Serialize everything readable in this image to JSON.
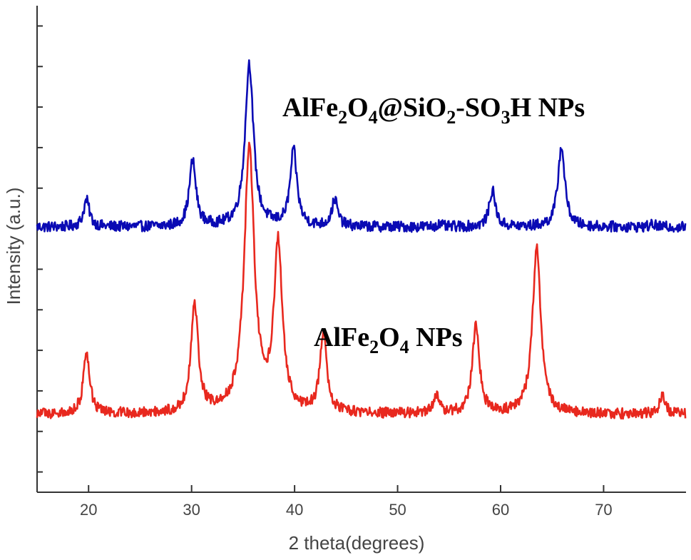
{
  "chart_data": {
    "type": "line",
    "title": "",
    "xlabel": "2 theta(degrees)",
    "ylabel": "Intensity (a.u.)",
    "xlim": [
      15,
      78
    ],
    "ylim": [
      0,
      10
    ],
    "x_ticks": [
      20,
      30,
      40,
      50,
      60,
      70
    ],
    "y_tick_count": 12,
    "grid": false,
    "colors": {
      "top": "#0a0ab4",
      "bottom": "#e8281e",
      "axis": "#333333"
    },
    "series": [
      {
        "name": "AlFe2O4@SiO2-SO3H NPs",
        "label_parts": [
          "AlFe",
          "2",
          "O",
          "4",
          "@SiO",
          "2",
          "-SO",
          "3",
          "H NPs"
        ],
        "color": "#0a0ab4",
        "baseline": 5.45,
        "peaks": [
          {
            "x": 19.8,
            "y": 6.0
          },
          {
            "x": 30.1,
            "y": 6.8
          },
          {
            "x": 35.6,
            "y": 8.8
          },
          {
            "x": 39.9,
            "y": 7.0
          },
          {
            "x": 43.9,
            "y": 6.0
          },
          {
            "x": 54.0,
            "y": 5.5
          },
          {
            "x": 59.2,
            "y": 6.2
          },
          {
            "x": 65.9,
            "y": 7.1
          },
          {
            "x": 74.8,
            "y": 5.5
          }
        ]
      },
      {
        "name": "AlFe2O4 NPs",
        "label_parts": [
          "AlFe",
          "2",
          "O",
          "4",
          " NPs"
        ],
        "color": "#e8281e",
        "baseline": 1.6,
        "peaks": [
          {
            "x": 19.8,
            "y": 2.8
          },
          {
            "x": 30.3,
            "y": 3.8
          },
          {
            "x": 35.6,
            "y": 7.0
          },
          {
            "x": 38.4,
            "y": 5.0
          },
          {
            "x": 42.8,
            "y": 3.2
          },
          {
            "x": 53.8,
            "y": 2.0
          },
          {
            "x": 57.6,
            "y": 3.4
          },
          {
            "x": 63.5,
            "y": 5.0
          },
          {
            "x": 75.7,
            "y": 2.0
          }
        ]
      }
    ]
  }
}
